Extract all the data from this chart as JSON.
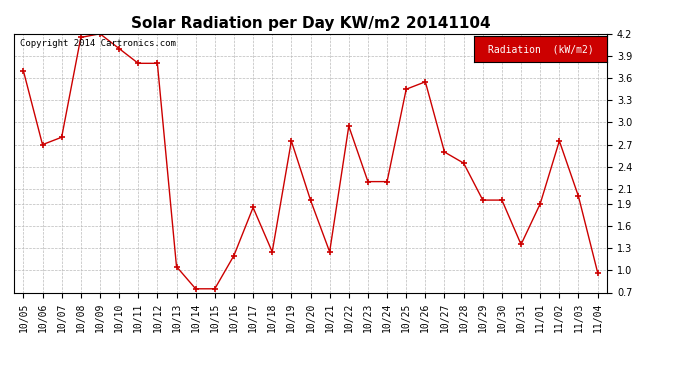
{
  "title": "Solar Radiation per Day KW/m2 20141104",
  "copyright": "Copyright 2014 Cartronics.com",
  "legend_label": "Radiation  (kW/m2)",
  "dates": [
    "10/05",
    "10/06",
    "10/07",
    "10/08",
    "10/09",
    "10/10",
    "10/11",
    "10/12",
    "10/13",
    "10/14",
    "10/15",
    "10/16",
    "10/17",
    "10/18",
    "10/19",
    "10/20",
    "10/21",
    "10/22",
    "10/23",
    "10/24",
    "10/25",
    "10/26",
    "10/27",
    "10/28",
    "10/29",
    "10/30",
    "10/31",
    "11/01",
    "11/02",
    "11/03",
    "11/04"
  ],
  "values": [
    3.7,
    2.7,
    2.8,
    4.15,
    4.2,
    4.0,
    3.8,
    3.8,
    1.05,
    0.75,
    0.75,
    1.2,
    1.85,
    1.25,
    2.75,
    1.95,
    1.25,
    2.95,
    2.2,
    2.2,
    3.45,
    3.55,
    2.6,
    2.45,
    1.95,
    1.95,
    1.35,
    1.9,
    2.75,
    2.0,
    0.97
  ],
  "line_color": "#cc0000",
  "marker": "+",
  "marker_size": 4,
  "marker_linewidth": 1.2,
  "linewidth": 1.0,
  "ylim": [
    0.7,
    4.2
  ],
  "yticks": [
    0.7,
    1.0,
    1.3,
    1.6,
    1.9,
    2.1,
    2.4,
    2.7,
    3.0,
    3.3,
    3.6,
    3.9,
    4.2
  ],
  "background_color": "#ffffff",
  "plot_bg_color": "#ffffff",
  "grid_color": "#bbbbbb",
  "title_fontsize": 11,
  "tick_fontsize": 7,
  "copyright_fontsize": 6.5,
  "legend_bg_color": "#cc0000",
  "legend_text_color": "#ffffff",
  "legend_fontsize": 7
}
